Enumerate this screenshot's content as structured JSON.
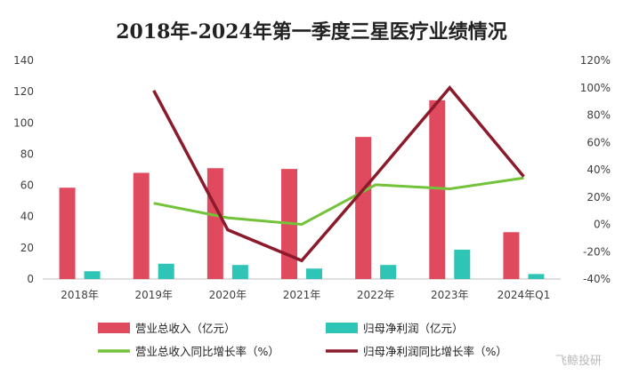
{
  "chart_data": {
    "type": "bar",
    "title": "2018年-2024年第一季度三星医疗业绩情况",
    "categories": [
      "2018年",
      "2019年",
      "2020年",
      "2021年",
      "2022年",
      "2023年",
      "2024年Q1"
    ],
    "y_left": {
      "lim": [
        0,
        140
      ],
      "ticks": [
        "0",
        "20",
        "40",
        "60",
        "80",
        "100",
        "120",
        "140"
      ]
    },
    "y_right": {
      "lim": [
        -40,
        120
      ],
      "ticks": [
        "-40%",
        "-20%",
        "0%",
        "20%",
        "40%",
        "60%",
        "80%",
        "100%",
        "120%"
      ]
    },
    "grid": false,
    "legend_position": "bottom",
    "series": [
      {
        "name": "营业总收入（亿元）",
        "kind": "bar",
        "axis": "left",
        "color": "#e04a5f",
        "values": [
          58.5,
          68,
          71,
          70.5,
          91,
          114.5,
          30
        ]
      },
      {
        "name": "归母净利润（亿元）",
        "kind": "bar",
        "axis": "left",
        "color": "#2ec4b6",
        "values": [
          5,
          9.8,
          9,
          6.7,
          9,
          18.8,
          3.2
        ]
      },
      {
        "name": "营业总收入同比增长率（%）",
        "kind": "line",
        "axis": "right",
        "color": "#72c23a",
        "values": [
          null,
          15.5,
          4.8,
          0,
          29,
          26,
          34
        ]
      },
      {
        "name": "归母净利润同比增长率（%）",
        "kind": "line",
        "axis": "right",
        "color": "#8b1a2b",
        "values": [
          null,
          98,
          -4,
          -26.5,
          36,
          100,
          35
        ]
      }
    ]
  },
  "watermark": "飞鲸投研"
}
